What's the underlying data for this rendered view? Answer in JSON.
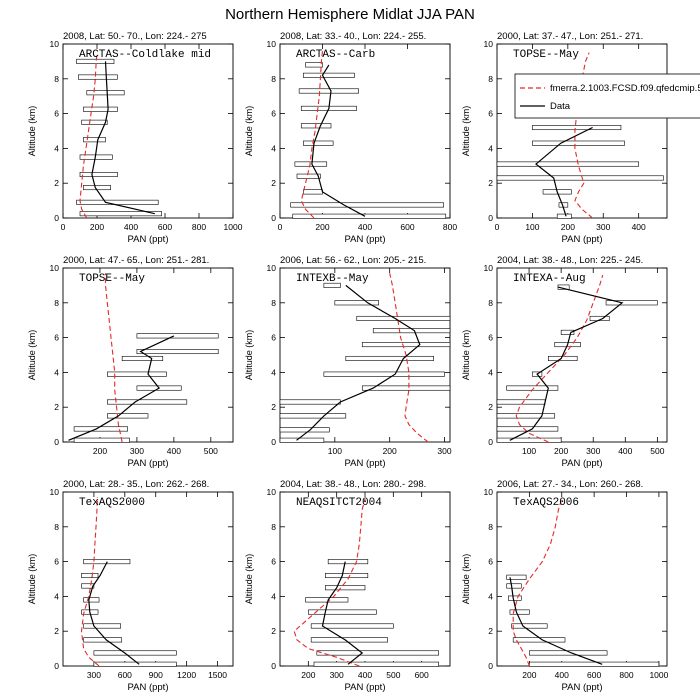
{
  "figure_title": "Northern Hemisphere Midlat JJA PAN",
  "legend": {
    "model_label": "fmerra.2.1003.FCSD.f09.qfedcmip.5",
    "data_label": "Data",
    "colors": {
      "model": "#e8282a",
      "data": "#000000"
    },
    "placement": "top-right (overlapping panel 3)"
  },
  "chart_data": [
    {
      "type": "line",
      "title": "2008, Lat:  50.- 70., Lon: 224.- 275",
      "campaign": "ARCTAS--Coldlake mid",
      "xlabel": "PAN (ppt)",
      "ylabel": "Altitude (km)",
      "xlim": [
        0,
        1000
      ],
      "ylim": [
        0,
        10
      ],
      "xticks": [
        0,
        200,
        400,
        600,
        800,
        1000
      ],
      "yticks": [
        0,
        2,
        4,
        6,
        8,
        10
      ],
      "data": {
        "altitude": [
          0.25,
          0.9,
          1.75,
          2.5,
          3.5,
          4.5,
          5.5,
          6.25,
          7.2,
          8.1,
          9.0
        ],
        "pan": [
          540,
          250,
          190,
          170,
          190,
          205,
          250,
          265,
          260,
          255,
          250
        ]
      },
      "data_range": [
        [
          100,
          580
        ],
        [
          80,
          560
        ],
        [
          120,
          280
        ],
        [
          100,
          320
        ],
        [
          100,
          290
        ],
        [
          120,
          250
        ],
        [
          110,
          260
        ],
        [
          120,
          320
        ],
        [
          140,
          360
        ],
        [
          90,
          320
        ],
        [
          80,
          300
        ]
      ],
      "model": {
        "altitude": [
          0,
          0.5,
          1,
          2,
          3,
          4,
          5,
          6,
          7,
          8,
          9,
          9.5
        ],
        "pan": [
          140,
          110,
          100,
          110,
          120,
          135,
          150,
          165,
          180,
          190,
          195,
          200
        ]
      }
    },
    {
      "type": "line",
      "title": "2008, Lat:  33.- 40., Lon: 224.- 255.",
      "campaign": "ARCTAS--Carb",
      "xlabel": "PAN (ppt)",
      "ylabel": "Altitude (km)",
      "xlim": [
        0,
        800
      ],
      "ylim": [
        0,
        10
      ],
      "xticks": [
        0,
        200,
        400,
        600,
        800
      ],
      "yticks": [
        0,
        2,
        4,
        6,
        8,
        10
      ],
      "data": {
        "altitude": [
          0.1,
          0.75,
          1.5,
          2.4,
          3.1,
          4.3,
          5.3,
          6.3,
          7.3,
          8.2,
          8.8
        ],
        "pan": [
          400,
          300,
          200,
          180,
          150,
          160,
          190,
          230,
          240,
          200,
          230
        ]
      },
      "data_range": [
        [
          60,
          780
        ],
        [
          50,
          770
        ],
        [
          110,
          200
        ],
        [
          80,
          190
        ],
        [
          70,
          220
        ],
        [
          110,
          250
        ],
        [
          100,
          240
        ],
        [
          100,
          360
        ],
        [
          90,
          370
        ],
        [
          110,
          350
        ],
        [
          120,
          200
        ]
      ],
      "model": {
        "altitude": [
          0,
          0.5,
          1,
          2,
          3,
          4,
          5,
          6,
          7,
          8,
          9,
          9.6
        ],
        "pan": [
          160,
          120,
          100,
          120,
          140,
          150,
          165,
          175,
          185,
          190,
          195,
          200
        ]
      }
    },
    {
      "type": "line",
      "title": "2000, Lat:  37.- 47., Lon: 251.- 271.",
      "campaign": "TOPSE--May",
      "xlabel": "PAN (ppt)",
      "ylabel": "Altitude (km)",
      "xlim": [
        0,
        480
      ],
      "ylim": [
        0,
        10
      ],
      "xticks": [
        0,
        100,
        200,
        300,
        400
      ],
      "yticks": [
        0,
        2,
        4,
        6,
        8,
        10
      ],
      "data": {
        "altitude": [
          0.1,
          0.75,
          1.5,
          2.3,
          3.1,
          4.3,
          5.2
        ],
        "pan": [
          195,
          185,
          170,
          160,
          110,
          180,
          270
        ]
      },
      "data_range": [
        [
          170,
          210
        ],
        [
          175,
          200
        ],
        [
          130,
          210
        ],
        [
          0,
          470
        ],
        [
          0,
          400
        ],
        [
          100,
          360
        ],
        [
          100,
          350
        ]
      ],
      "model": {
        "altitude": [
          0,
          0.5,
          1,
          1.5,
          2,
          3,
          4,
          5,
          6,
          7,
          8,
          9,
          9.5
        ],
        "pan": [
          270,
          240,
          220,
          230,
          245,
          230,
          220,
          220,
          225,
          230,
          240,
          250,
          260
        ]
      }
    },
    {
      "type": "line",
      "title": "2000, Lat:  47.- 65., Lon: 251.- 281.",
      "campaign": "TOPSE--May",
      "xlabel": "PAN (ppt)",
      "ylabel": "Altitude (km)",
      "xlim": [
        100,
        560
      ],
      "ylim": [
        0,
        10
      ],
      "xticks": [
        200,
        300,
        400,
        500
      ],
      "yticks": [
        0,
        2,
        4,
        6,
        8,
        10
      ],
      "data": {
        "altitude": [
          0.1,
          0.75,
          1.5,
          2.3,
          3.1,
          3.9,
          4.8,
          5.2,
          6.1
        ],
        "pan": [
          115,
          190,
          250,
          295,
          360,
          330,
          340,
          310,
          400
        ]
      },
      "data_range": [
        [
          130,
          280
        ],
        [
          130,
          275
        ],
        [
          220,
          330
        ],
        [
          220,
          435
        ],
        [
          300,
          420
        ],
        [
          220,
          380
        ],
        [
          260,
          370
        ],
        [
          300,
          520
        ],
        [
          300,
          520
        ]
      ],
      "model": {
        "altitude": [
          0,
          0.5,
          1,
          2,
          3,
          4,
          5,
          6,
          7,
          8,
          9,
          9.7
        ],
        "pan": [
          260,
          255,
          250,
          245,
          240,
          240,
          235,
          230,
          225,
          220,
          215,
          215
        ]
      }
    },
    {
      "type": "line",
      "title": "2006, Lat:  56.- 62., Lon: 205.- 215.",
      "campaign": "INTEXB--May",
      "xlabel": "PAN (ppt)",
      "ylabel": "Altitude (km)",
      "xlim": [
        0,
        310
      ],
      "ylim": [
        0,
        10
      ],
      "xticks": [
        100,
        200,
        300
      ],
      "yticks": [
        0,
        2,
        4,
        6,
        8,
        10
      ],
      "data": {
        "altitude": [
          0.1,
          0.7,
          1.5,
          2.3,
          3.1,
          3.9,
          4.8,
          5.6,
          6.4,
          7.1,
          8.0,
          9.0
        ],
        "pan": [
          30,
          55,
          80,
          110,
          170,
          210,
          225,
          255,
          245,
          210,
          160,
          120
        ]
      },
      "data_range": [
        [
          0,
          80
        ],
        [
          0,
          90
        ],
        [
          0,
          120
        ],
        [
          0,
          110
        ],
        [
          150,
          320
        ],
        [
          80,
          300
        ],
        [
          120,
          280
        ],
        [
          150,
          320
        ],
        [
          170,
          320
        ],
        [
          140,
          310
        ],
        [
          100,
          180
        ],
        [
          80,
          110
        ]
      ],
      "model": {
        "altitude": [
          0,
          0.5,
          1,
          1.5,
          2,
          3,
          4,
          5,
          6,
          7,
          8,
          9,
          9.7
        ],
        "pan": [
          270,
          250,
          235,
          228,
          230,
          235,
          235,
          230,
          220,
          215,
          210,
          205,
          200
        ]
      }
    },
    {
      "type": "line",
      "title": "2004, Lat:  38.- 48., Lon: 225.- 245.",
      "campaign": "INTEXA--Aug",
      "xlabel": "PAN (ppt)",
      "ylabel": "Altitude (km)",
      "xlim": [
        0,
        530
      ],
      "ylim": [
        0,
        10
      ],
      "xticks": [
        100,
        200,
        300,
        400,
        500
      ],
      "yticks": [
        0,
        2,
        4,
        6,
        8,
        10
      ],
      "data": {
        "altitude": [
          0.1,
          0.75,
          1.5,
          2.3,
          3.1,
          3.9,
          4.8,
          5.6,
          6.3,
          7.1,
          8.0,
          8.9
        ],
        "pan": [
          40,
          110,
          140,
          150,
          160,
          125,
          200,
          220,
          230,
          330,
          390,
          190
        ]
      },
      "data_range": [
        [
          0,
          200
        ],
        [
          0,
          190
        ],
        [
          0,
          180
        ],
        [
          0,
          150
        ],
        [
          30,
          190
        ],
        [
          110,
          140
        ],
        [
          160,
          250
        ],
        [
          180,
          260
        ],
        [
          200,
          240
        ],
        [
          290,
          350
        ],
        [
          340,
          500
        ],
        [
          190,
          225
        ]
      ],
      "model": {
        "altitude": [
          0,
          0.5,
          1,
          1.5,
          2,
          3,
          4,
          5,
          6,
          7,
          8,
          9,
          9.6
        ],
        "pan": [
          160,
          100,
          70,
          60,
          70,
          110,
          160,
          210,
          250,
          280,
          300,
          320,
          330
        ]
      }
    },
    {
      "type": "line",
      "title": "2000, Lat:  28.- 35., Lon: 262.- 268.",
      "campaign": "TexAQS2000",
      "xlabel": "PAN (ppt)",
      "ylabel": "Altitude (km)",
      "xlim": [
        0,
        1650
      ],
      "ylim": [
        0,
        10
      ],
      "xticks": [
        300,
        600,
        900,
        1200,
        1500
      ],
      "yticks": [
        0,
        2,
        4,
        6,
        8,
        10
      ],
      "data": {
        "altitude": [
          0.1,
          0.75,
          1.5,
          2.3,
          3.1,
          3.8,
          4.6,
          5.2,
          6.0
        ],
        "pan": [
          740,
          600,
          420,
          300,
          260,
          250,
          290,
          360,
          430
        ]
      },
      "data_range": [
        [
          300,
          1100
        ],
        [
          300,
          1100
        ],
        [
          200,
          570
        ],
        [
          200,
          560
        ],
        [
          180,
          340
        ],
        [
          200,
          350
        ],
        [
          180,
          300
        ],
        [
          180,
          340
        ],
        [
          200,
          650
        ]
      ],
      "model": {
        "altitude": [
          0,
          0.5,
          1,
          2,
          3,
          4,
          5,
          6,
          7,
          8,
          9,
          9.7
        ],
        "pan": [
          350,
          250,
          200,
          180,
          200,
          250,
          280,
          300,
          310,
          320,
          330,
          335
        ]
      }
    },
    {
      "type": "line",
      "title": "2004, Lat:  38.- 48., Lon: 280.- 298.",
      "campaign": "NEAQSITCT2004",
      "xlabel": "PAN (ppt)",
      "ylabel": "Altitude (km)",
      "xlim": [
        100,
        700
      ],
      "ylim": [
        0,
        10
      ],
      "xticks": [
        200,
        300,
        400,
        500,
        600
      ],
      "yticks": [
        0,
        2,
        4,
        6,
        8,
        10
      ],
      "data": {
        "altitude": [
          0.1,
          0.75,
          1.5,
          2.3,
          3.1,
          3.8,
          4.5,
          5.2,
          6.0
        ],
        "pan": [
          340,
          390,
          330,
          250,
          260,
          270,
          300,
          320,
          330
        ]
      },
      "data_range": [
        [
          220,
          660
        ],
        [
          230,
          660
        ],
        [
          210,
          480
        ],
        [
          210,
          500
        ],
        [
          200,
          440
        ],
        [
          190,
          340
        ],
        [
          260,
          400
        ],
        [
          260,
          410
        ],
        [
          270,
          410
        ]
      ],
      "model": {
        "altitude": [
          0,
          0.5,
          1,
          1.5,
          2,
          3,
          4,
          5,
          6,
          7,
          8,
          9,
          9.6
        ],
        "pan": [
          380,
          300,
          200,
          160,
          150,
          220,
          290,
          340,
          370,
          380,
          385,
          390,
          400
        ]
      }
    },
    {
      "type": "line",
      "title": "2006, Lat:  27.- 34., Lon: 260.- 268.",
      "campaign": "TexAQS2006",
      "xlabel": "PAN (ppt)",
      "ylabel": "Altitude (km)",
      "xlim": [
        0,
        1050
      ],
      "ylim": [
        0,
        10
      ],
      "xticks": [
        200,
        400,
        600,
        800,
        1000
      ],
      "yticks": [
        0,
        2,
        4,
        6,
        8,
        10
      ],
      "data": {
        "altitude": [
          0.1,
          0.75,
          1.5,
          2.3,
          3.1,
          3.9,
          4.6,
          5.1
        ],
        "pan": [
          650,
          460,
          280,
          160,
          120,
          100,
          90,
          80
        ]
      },
      "data_range": [
        [
          200,
          1000
        ],
        [
          200,
          680
        ],
        [
          100,
          420
        ],
        [
          90,
          310
        ],
        [
          80,
          200
        ],
        [
          70,
          150
        ],
        [
          60,
          150
        ],
        [
          60,
          180
        ]
      ],
      "model": {
        "altitude": [
          0,
          0.5,
          1,
          1.5,
          2,
          3,
          4,
          5,
          6,
          7,
          8,
          9,
          9.6
        ],
        "pan": [
          200,
          180,
          150,
          120,
          100,
          100,
          130,
          200,
          280,
          330,
          360,
          380,
          400
        ]
      }
    }
  ]
}
